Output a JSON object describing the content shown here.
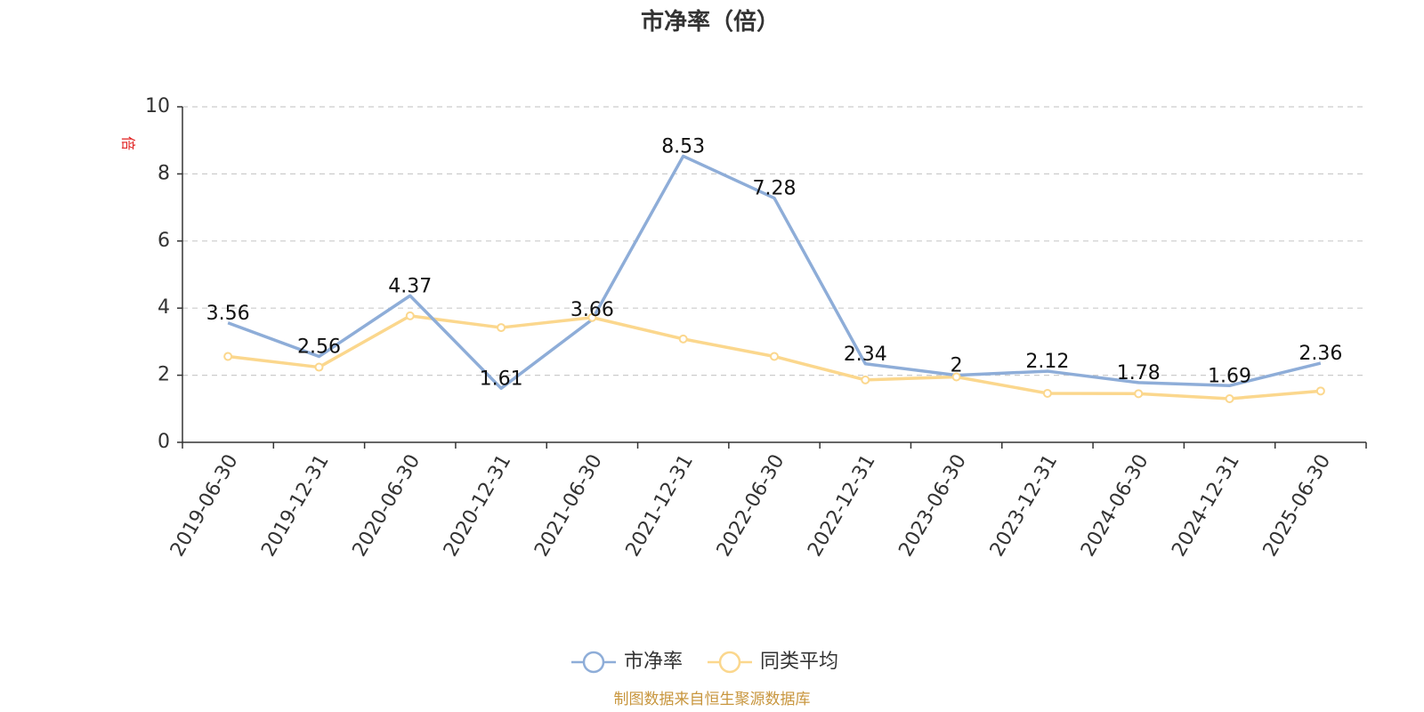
{
  "chart_data": {
    "type": "line",
    "title": "市净率（倍）",
    "ylabel": "倍",
    "ylim": [
      0,
      10
    ],
    "yticks": [
      0,
      2,
      4,
      6,
      8,
      10
    ],
    "grid": "horizontal-dashed",
    "categories": [
      "2019-06-30",
      "2019-12-31",
      "2020-06-30",
      "2020-12-31",
      "2021-06-30",
      "2021-12-31",
      "2022-06-30",
      "2022-12-31",
      "2023-06-30",
      "2023-12-31",
      "2024-06-30",
      "2024-12-31",
      "2025-06-30"
    ],
    "series": [
      {
        "name": "市净率",
        "color": "#8eadd8",
        "values": [
          3.56,
          2.56,
          4.37,
          1.61,
          3.66,
          8.53,
          7.28,
          2.34,
          2,
          2.12,
          1.78,
          1.69,
          2.36
        ],
        "labels": [
          "3.56",
          "2.56",
          "4.37",
          "1.61",
          "3.66",
          "8.53",
          "7.28",
          "2.34",
          "2",
          "2.12",
          "1.78",
          "1.69",
          "2.36"
        ]
      },
      {
        "name": "同类平均",
        "color": "#fbd78d",
        "values": [
          2.56,
          2.24,
          3.77,
          3.42,
          3.72,
          3.08,
          2.56,
          1.86,
          1.95,
          1.46,
          1.45,
          1.3,
          1.53
        ]
      }
    ],
    "legend_position": "bottom-center",
    "source": "制图数据来自恒生聚源数据库"
  }
}
